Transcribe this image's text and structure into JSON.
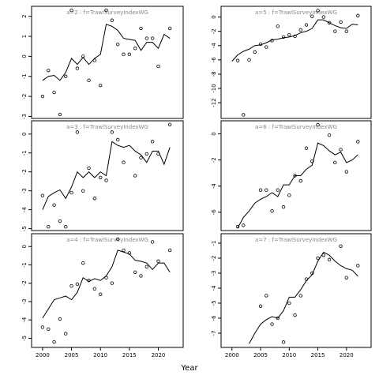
{
  "xlabel": "Year",
  "chart_data": [
    {
      "type": "line",
      "title": "a=2 : f=TrawlSurveyIndexWG",
      "color": "#000",
      "x": [
        2000,
        2001,
        2002,
        2003,
        2004,
        2005,
        2006,
        2007,
        2008,
        2009,
        2010,
        2011,
        2012,
        2013,
        2014,
        2015,
        2016,
        2017,
        2018,
        2019,
        2020,
        2021,
        2022
      ],
      "series": [
        {
          "style": "points",
          "values": [
            -2.0,
            -0.7,
            -1.8,
            -2.9,
            -1.0,
            2.3,
            -0.6,
            0,
            -1.2,
            -0.2,
            -1.45,
            2.3,
            1.8,
            0.6,
            0.1,
            0.1,
            0.4,
            1.4,
            0.9,
            0.9,
            -0.5,
            null,
            1.4
          ]
        },
        {
          "style": "line",
          "values": [
            -1.2,
            -1.0,
            -0.95,
            -1.2,
            -0.8,
            -0.1,
            -0.4,
            -0.05,
            -0.4,
            -0.1,
            0.1,
            1.6,
            1.5,
            1.3,
            0.9,
            0.85,
            0.8,
            0.3,
            0.7,
            0.7,
            0.4,
            1.1,
            0.9
          ]
        }
      ],
      "xlim": [
        1998.1,
        2024.3
      ],
      "ylim": [
        -3.1,
        2.5
      ],
      "yticks": [
        -3,
        -2,
        -1,
        0,
        1,
        2
      ]
    },
    {
      "type": "line",
      "title": "a=5 : f=TrawlSurveyIndexWG",
      "color": "#000",
      "x": [
        2000,
        2001,
        2002,
        2003,
        2004,
        2005,
        2006,
        2007,
        2008,
        2009,
        2010,
        2011,
        2012,
        2013,
        2014,
        2015,
        2016,
        2017,
        2018,
        2019,
        2020,
        2021,
        2022
      ],
      "series": [
        {
          "style": "points",
          "values": [
            null,
            -6.1,
            -13.7,
            -6,
            -4.9,
            -3.8,
            -4.2,
            -3.3,
            -1.3,
            -2.8,
            -2.5,
            -2.7,
            -1.8,
            -1.1,
            0.1,
            0.9,
            0,
            -0.8,
            -2.0,
            -0.7,
            -2.0,
            null,
            0.2
          ]
        },
        {
          "style": "line",
          "values": [
            -6.2,
            -5.3,
            -4.8,
            -4.5,
            -4.0,
            -3.9,
            -3.6,
            -3.2,
            -3.1,
            -2.9,
            -2.8,
            -2.6,
            -2.2,
            -2.0,
            -1.6,
            -0.4,
            -0.4,
            -0.8,
            -1.2,
            -1.5,
            -1.6,
            -1.0,
            -1.1
          ]
        }
      ],
      "xlim": [
        1998.1,
        2024.3
      ],
      "ylim": [
        -14.2,
        1.5
      ],
      "yticks": [
        -12,
        -10,
        -8,
        -6,
        -4,
        -2,
        0
      ]
    },
    {
      "type": "line",
      "title": "a=3 : f=TrawlSurveyIndexWG",
      "color": "#000",
      "x": [
        2000,
        2001,
        2002,
        2003,
        2004,
        2005,
        2006,
        2007,
        2008,
        2009,
        2010,
        2011,
        2012,
        2013,
        2014,
        2015,
        2016,
        2017,
        2018,
        2019,
        2020,
        2021,
        2022
      ],
      "series": [
        {
          "style": "points",
          "values": [
            -3.25,
            -4.9,
            -3.75,
            -4.6,
            -4.9,
            -3.1,
            0.1,
            -3,
            -1.8,
            -3.4,
            -2.3,
            -2.45,
            0.1,
            -0.3,
            -1.5,
            null,
            -2.2,
            -1.25,
            -1.05,
            -0.4,
            -1.05,
            null,
            0.5
          ]
        },
        {
          "style": "line",
          "values": [
            -4.0,
            -3.3,
            -3.1,
            -2.95,
            -3.4,
            -2.8,
            -2.0,
            -2.3,
            -2.0,
            -2.3,
            -2.0,
            -2.2,
            -0.4,
            -0.6,
            -0.7,
            -0.6,
            -0.9,
            -1.1,
            -1.5,
            -0.9,
            -0.9,
            -1.6,
            -0.7
          ]
        }
      ],
      "xlim": [
        1998.1,
        2024.3
      ],
      "ylim": [
        -5.1,
        0.7
      ],
      "yticks": [
        -5,
        -4,
        -3,
        -2,
        -1,
        0
      ]
    },
    {
      "type": "line",
      "title": "a=6 : f=TrawlSurveyIndexWG",
      "color": "#000",
      "x": [
        2000,
        2001,
        2002,
        2003,
        2004,
        2005,
        2006,
        2007,
        2008,
        2009,
        2010,
        2011,
        2012,
        2013,
        2014,
        2015,
        2016,
        2017,
        2018,
        2019,
        2020,
        2021,
        2022
      ],
      "series": [
        {
          "style": "points",
          "values": [
            null,
            -7.1,
            -7.0,
            null,
            null,
            -4.3,
            -4.3,
            -5.9,
            -4.3,
            -5.6,
            -4.7,
            -3.2,
            -3.6,
            -1.1,
            -2.1,
            0.7,
            null,
            -0.1,
            -2.2,
            -1.2,
            -2.9,
            null,
            -0.6
          ]
        },
        {
          "style": "line",
          "values": [
            null,
            -7.2,
            -6.4,
            -5.9,
            -5.3,
            -5.0,
            -4.8,
            -4.5,
            -4.8,
            -3.9,
            -3.9,
            -3.2,
            -3.2,
            -2.7,
            -2.4,
            -0.7,
            -0.9,
            -1.3,
            -1.6,
            -1.4,
            -2.2,
            -2.0,
            -1.6
          ]
        }
      ],
      "xlim": [
        1998.1,
        2024.3
      ],
      "ylim": [
        -7.4,
        1.0
      ],
      "yticks": [
        -6,
        -4,
        -2,
        0
      ]
    },
    {
      "type": "line",
      "title": "a=4 : f=TrawlSurveyIndexWG",
      "color": "#000",
      "x": [
        2000,
        2001,
        2002,
        2003,
        2004,
        2005,
        2006,
        2007,
        2008,
        2009,
        2010,
        2011,
        2012,
        2013,
        2014,
        2015,
        2016,
        2017,
        2018,
        2019,
        2020,
        2021,
        2022
      ],
      "series": [
        {
          "style": "points",
          "values": [
            -4.4,
            -4.5,
            -5.2,
            -3.95,
            -4.75,
            -2.15,
            -2.05,
            -0.9,
            -1.85,
            -2.3,
            -2.6,
            -1.7,
            -2.0,
            0.4,
            -0.2,
            -0.35,
            -1.4,
            -1.6,
            -1.1,
            0.25,
            -0.8,
            null,
            -0.2
          ]
        },
        {
          "style": "line",
          "values": [
            -3.9,
            -3.4,
            -2.9,
            -2.8,
            -2.7,
            -2.9,
            -2.5,
            -1.7,
            -1.9,
            -1.75,
            -1.85,
            -1.6,
            -1.1,
            -0.2,
            -0.3,
            -0.4,
            -0.75,
            -0.8,
            -0.9,
            -1.25,
            -0.9,
            -0.9,
            -1.4
          ]
        }
      ],
      "xlim": [
        1998.1,
        2024.3
      ],
      "ylim": [
        -5.5,
        0.7
      ],
      "yticks": [
        -5,
        -4,
        -3,
        -2,
        -1,
        0
      ],
      "xticks": [
        2000,
        2005,
        2010,
        2015,
        2020
      ]
    },
    {
      "type": "line",
      "title": "a=7 : f=TrawlSurveyIndexWG",
      "color": "#000",
      "x": [
        2000,
        2001,
        2002,
        2003,
        2004,
        2005,
        2006,
        2007,
        2008,
        2009,
        2010,
        2011,
        2012,
        2013,
        2014,
        2015,
        2016,
        2017,
        2018,
        2019,
        2020,
        2021,
        2022
      ],
      "series": [
        {
          "style": "points",
          "values": [
            null,
            null,
            null,
            null,
            null,
            -5.2,
            -4.5,
            -6.4,
            -6.0,
            -7.6,
            -5.0,
            -5.8,
            -4.5,
            -3.4,
            -3.0,
            -2.0,
            -1.8,
            -2.1,
            null,
            -1.2,
            -3.3,
            null,
            -2.5
          ]
        },
        {
          "style": "line",
          "values": [
            null,
            null,
            null,
            -7.7,
            -7.0,
            -6.4,
            -6.1,
            -5.9,
            -6.0,
            -5.5,
            -4.6,
            -4.6,
            -4.1,
            -3.5,
            -3.1,
            -2.2,
            -1.6,
            -1.8,
            -2.2,
            -2.5,
            -2.7,
            -2.8,
            -3.2
          ]
        }
      ],
      "xlim": [
        1998.1,
        2024.3
      ],
      "ylim": [
        -7.95,
        -0.37
      ],
      "yticks": [
        -7,
        -6,
        -5,
        -4,
        -3,
        -2,
        -1
      ],
      "xticks": [
        2000,
        2005,
        2010,
        2015,
        2020
      ]
    }
  ]
}
